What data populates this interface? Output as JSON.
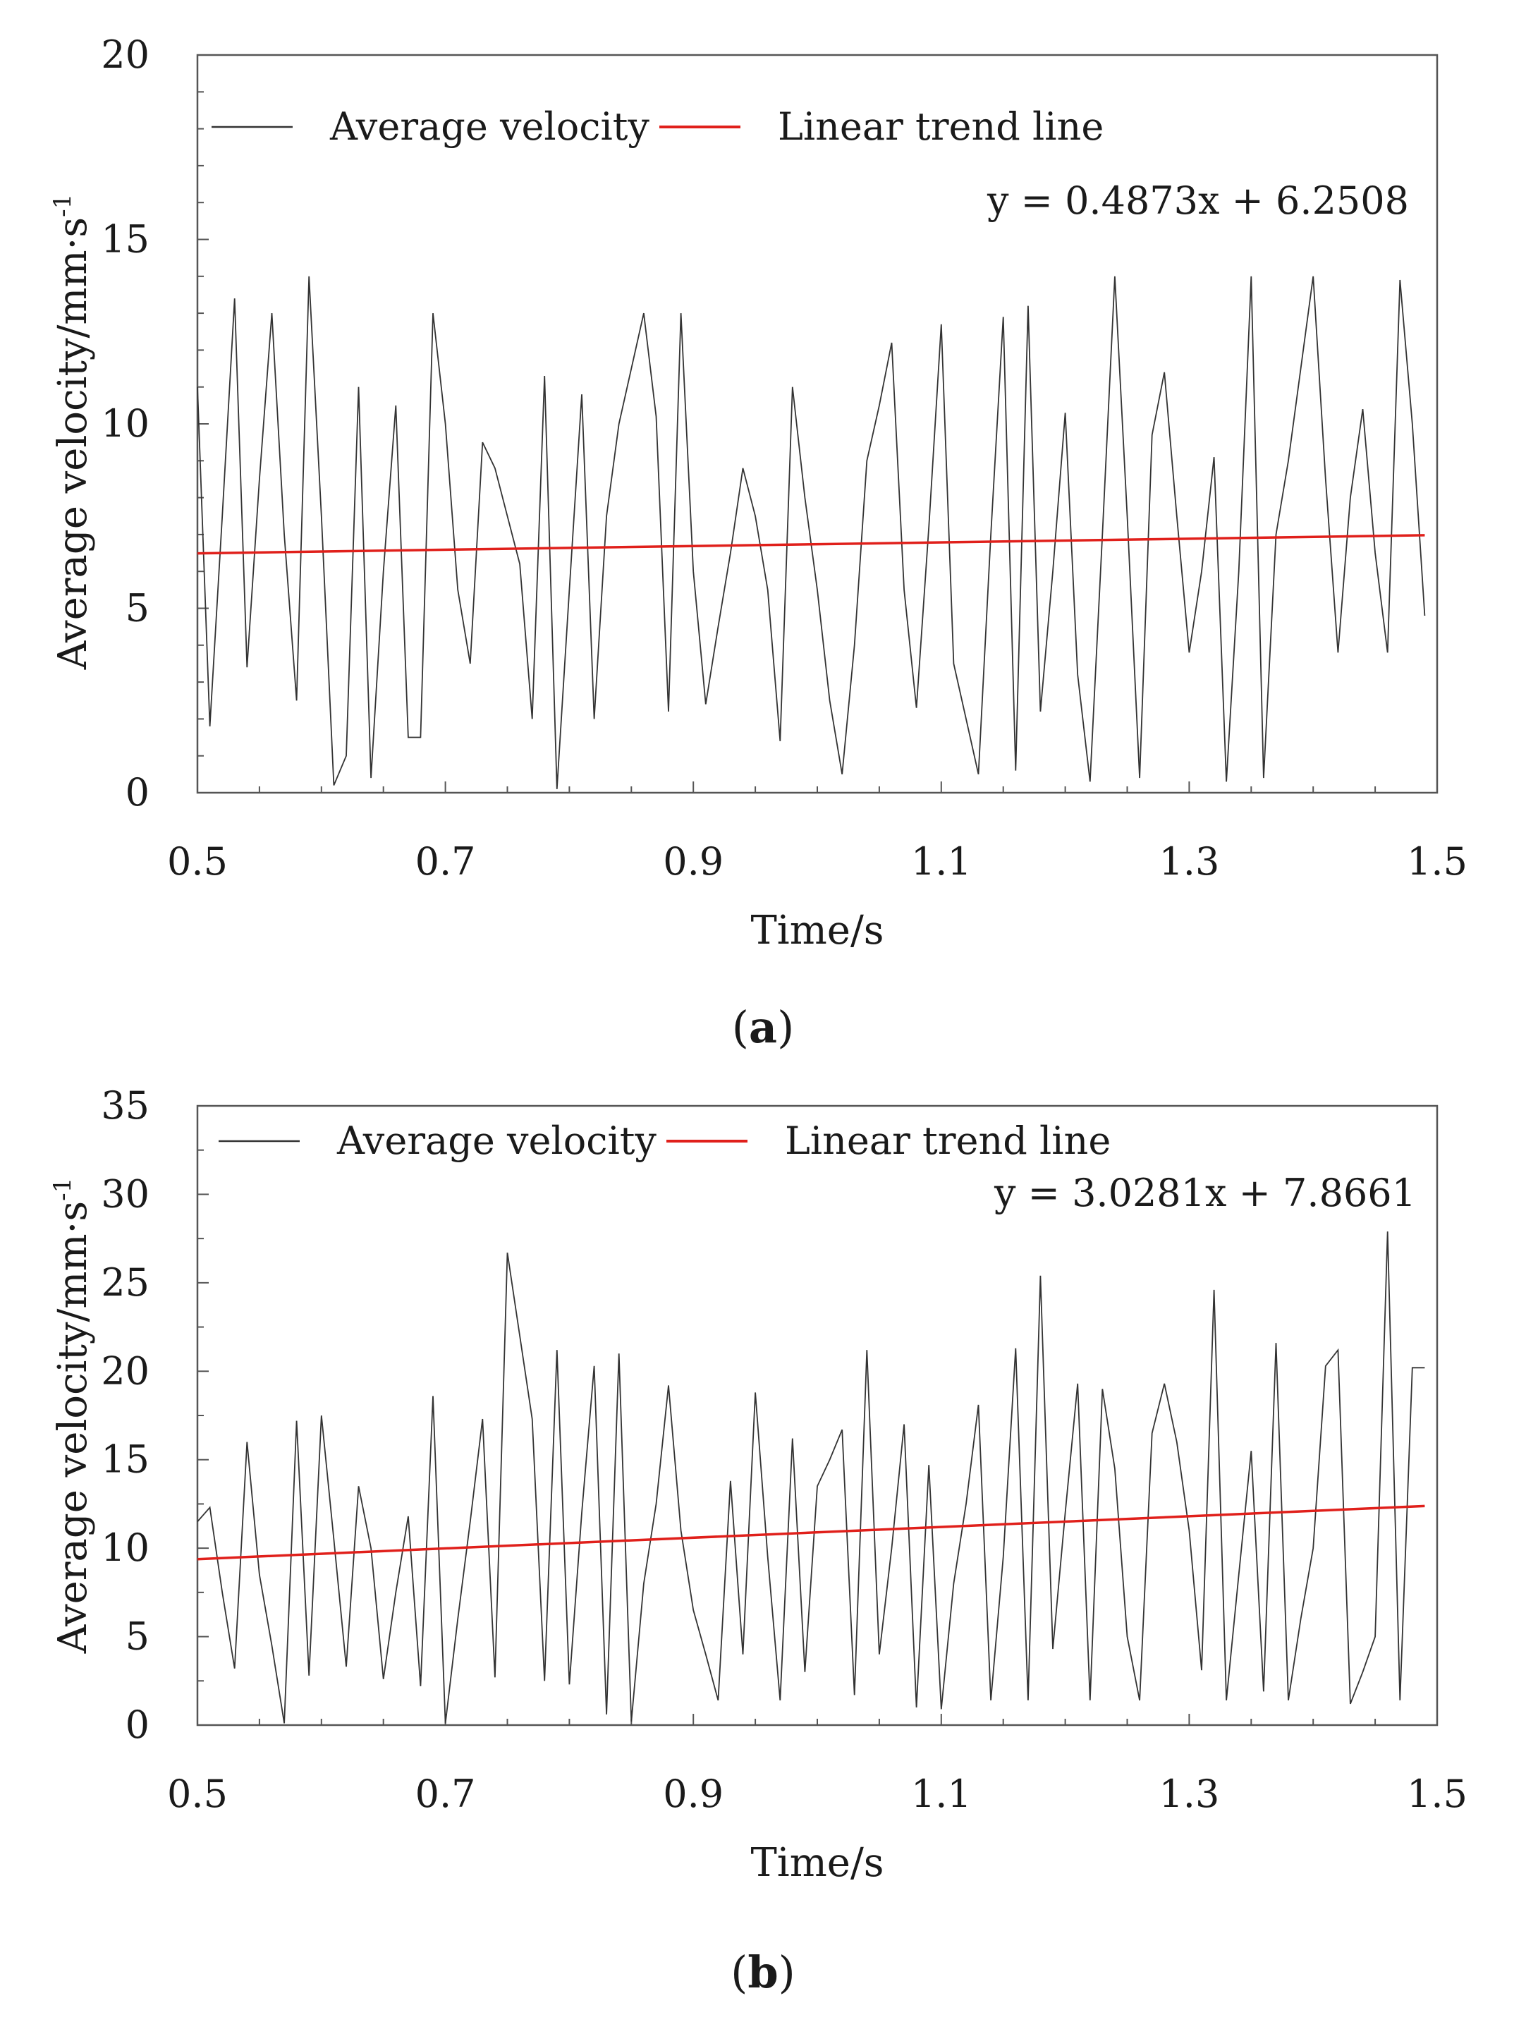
{
  "chart_data": [
    {
      "type": "line",
      "panel_label": "a",
      "title": "",
      "xlabel": "Time/s",
      "ylabel": "Average velocity/mm·s",
      "ylabel_superscript": "-1",
      "xlim": [
        0.5,
        1.5
      ],
      "ylim": [
        0,
        20
      ],
      "xticks": [
        "0.5",
        "0.7",
        "0.9",
        "1.1",
        "1.3",
        "1.5"
      ],
      "yticks": [
        "0",
        "5",
        "10",
        "15",
        "20"
      ],
      "grid": false,
      "legend": [
        "Average velocity",
        "Linear trend line"
      ],
      "legend_position": "top-left",
      "equation": "y = 0.4873x + 6.2508",
      "colors": {
        "series": "#333333",
        "trend": "#e0201b",
        "axis": "#555555"
      },
      "series": [
        {
          "name": "Average velocity",
          "x": [
            0.5,
            0.51,
            0.52,
            0.53,
            0.54,
            0.55,
            0.56,
            0.57,
            0.58,
            0.59,
            0.6,
            0.61,
            0.62,
            0.63,
            0.64,
            0.65,
            0.66,
            0.67,
            0.68,
            0.69,
            0.7,
            0.71,
            0.72,
            0.73,
            0.74,
            0.75,
            0.76,
            0.77,
            0.78,
            0.79,
            0.8,
            0.81,
            0.82,
            0.83,
            0.84,
            0.85,
            0.86,
            0.87,
            0.88,
            0.89,
            0.9,
            0.91,
            0.92,
            0.93,
            0.94,
            0.95,
            0.96,
            0.97,
            0.98,
            0.99,
            1.0,
            1.01,
            1.02,
            1.03,
            1.04,
            1.05,
            1.06,
            1.07,
            1.08,
            1.09,
            1.1,
            1.11,
            1.12,
            1.13,
            1.14,
            1.15,
            1.16,
            1.17,
            1.18,
            1.19,
            1.2,
            1.21,
            1.22,
            1.23,
            1.24,
            1.25,
            1.26,
            1.27,
            1.28,
            1.29,
            1.3,
            1.31,
            1.32,
            1.33,
            1.34,
            1.35,
            1.36,
            1.37,
            1.38,
            1.39,
            1.4,
            1.41,
            1.42,
            1.43,
            1.44,
            1.45,
            1.46,
            1.47,
            1.48,
            1.49
          ],
          "y": [
            11.0,
            1.8,
            7.5,
            13.4,
            3.4,
            8.5,
            13.0,
            7.0,
            2.5,
            14.0,
            7.5,
            0.2,
            1.0,
            11.0,
            0.4,
            6.0,
            10.5,
            1.5,
            1.5,
            13.0,
            10.0,
            5.5,
            3.5,
            9.5,
            8.8,
            7.5,
            6.2,
            2.0,
            11.3,
            0.1,
            5.5,
            10.8,
            2.0,
            7.5,
            10.0,
            11.5,
            13.0,
            10.2,
            2.2,
            13.0,
            6.0,
            2.4,
            4.5,
            6.5,
            8.8,
            7.5,
            5.5,
            1.4,
            11.0,
            8.0,
            5.5,
            2.5,
            0.5,
            4.0,
            9.0,
            10.5,
            12.2,
            5.5,
            2.3,
            7.2,
            12.7,
            3.5,
            2.0,
            0.5,
            7.0,
            12.9,
            0.6,
            13.2,
            2.2,
            6.0,
            10.3,
            3.2,
            0.3,
            7.0,
            14.0,
            7.5,
            0.4,
            9.7,
            11.4,
            7.5,
            3.8,
            6.0,
            9.1,
            0.3,
            6.0,
            14.0,
            0.4,
            7.0,
            9.0,
            11.5,
            14.0,
            8.5,
            3.8,
            8.0,
            10.4,
            6.5,
            3.8,
            13.9,
            10.0,
            4.8
          ]
        },
        {
          "name": "Linear trend line",
          "x": [
            0.5,
            1.49
          ],
          "y": [
            6.49,
            6.98
          ]
        }
      ]
    },
    {
      "type": "line",
      "panel_label": "b",
      "title": "",
      "xlabel": "Time/s",
      "ylabel": "Average velocity/mm·s",
      "ylabel_superscript": "-1",
      "xlim": [
        0.5,
        1.5
      ],
      "ylim": [
        0,
        35
      ],
      "xticks": [
        "0.5",
        "0.7",
        "0.9",
        "1.1",
        "1.3",
        "1.5"
      ],
      "yticks": [
        "0",
        "5",
        "10",
        "15",
        "20",
        "25",
        "30",
        "35"
      ],
      "grid": false,
      "legend": [
        "Average velocity",
        "Linear trend line"
      ],
      "legend_position": "top-left",
      "equation": "y = 3.0281x + 7.8661",
      "colors": {
        "series": "#333333",
        "trend": "#e0201b",
        "axis": "#555555"
      },
      "series": [
        {
          "name": "Average velocity",
          "x": [
            0.5,
            0.51,
            0.52,
            0.53,
            0.54,
            0.55,
            0.56,
            0.57,
            0.58,
            0.59,
            0.6,
            0.61,
            0.62,
            0.63,
            0.64,
            0.65,
            0.66,
            0.67,
            0.68,
            0.69,
            0.7,
            0.71,
            0.72,
            0.73,
            0.74,
            0.75,
            0.76,
            0.77,
            0.78,
            0.79,
            0.8,
            0.81,
            0.82,
            0.83,
            0.84,
            0.85,
            0.86,
            0.87,
            0.88,
            0.89,
            0.9,
            0.91,
            0.92,
            0.93,
            0.94,
            0.95,
            0.96,
            0.97,
            0.98,
            0.99,
            1.0,
            1.01,
            1.02,
            1.03,
            1.04,
            1.05,
            1.06,
            1.07,
            1.08,
            1.09,
            1.1,
            1.11,
            1.12,
            1.13,
            1.14,
            1.15,
            1.16,
            1.17,
            1.18,
            1.19,
            1.2,
            1.21,
            1.22,
            1.23,
            1.24,
            1.25,
            1.26,
            1.27,
            1.28,
            1.29,
            1.3,
            1.31,
            1.32,
            1.33,
            1.34,
            1.35,
            1.36,
            1.37,
            1.38,
            1.39,
            1.4,
            1.41,
            1.42,
            1.43,
            1.44,
            1.45,
            1.46,
            1.47,
            1.48,
            1.49
          ],
          "y": [
            11.5,
            12.3,
            7.5,
            3.2,
            16.0,
            8.5,
            4.5,
            0.1,
            17.2,
            2.8,
            17.5,
            10.5,
            3.3,
            13.5,
            10.0,
            2.6,
            7.5,
            11.8,
            2.2,
            18.6,
            0.1,
            6.0,
            11.5,
            17.3,
            2.7,
            26.7,
            22.0,
            17.3,
            2.5,
            21.2,
            2.3,
            12.0,
            20.3,
            0.6,
            21.0,
            0.2,
            8.0,
            12.5,
            19.2,
            11.0,
            6.5,
            4.0,
            1.4,
            13.8,
            4.0,
            18.8,
            9.5,
            1.4,
            16.2,
            3.0,
            13.5,
            15.0,
            16.7,
            1.7,
            21.2,
            4.0,
            10.0,
            17.0,
            1.0,
            14.7,
            0.9,
            8.0,
            12.5,
            18.1,
            1.4,
            9.5,
            21.3,
            1.4,
            25.4,
            4.3,
            12.0,
            19.3,
            1.4,
            19.0,
            14.5,
            5.0,
            1.4,
            16.5,
            19.3,
            16.0,
            11.0,
            3.1,
            24.6,
            1.4,
            8.5,
            15.5,
            1.9,
            21.6,
            1.4,
            6.0,
            10.0,
            20.3,
            21.2,
            1.2,
            3.0,
            5.0,
            27.9,
            1.4,
            20.2,
            20.2
          ]
        },
        {
          "name": "Linear trend line",
          "x": [
            0.5,
            1.49
          ],
          "y": [
            9.38,
            12.38
          ]
        }
      ]
    }
  ]
}
